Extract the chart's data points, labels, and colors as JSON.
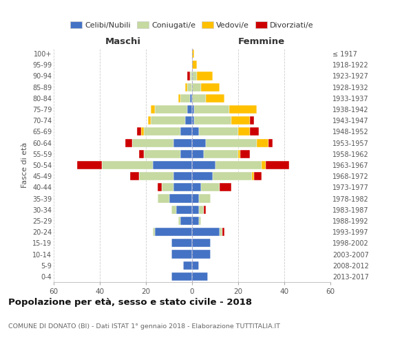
{
  "age_groups": [
    "0-4",
    "5-9",
    "10-14",
    "15-19",
    "20-24",
    "25-29",
    "30-34",
    "35-39",
    "40-44",
    "45-49",
    "50-54",
    "55-59",
    "60-64",
    "65-69",
    "70-74",
    "75-79",
    "80-84",
    "85-89",
    "90-94",
    "95-99",
    "100+"
  ],
  "birth_years": [
    "2013-2017",
    "2008-2012",
    "2003-2007",
    "1998-2002",
    "1993-1997",
    "1988-1992",
    "1983-1987",
    "1978-1982",
    "1973-1977",
    "1968-1972",
    "1963-1967",
    "1958-1962",
    "1953-1957",
    "1948-1952",
    "1943-1947",
    "1938-1942",
    "1933-1937",
    "1928-1932",
    "1923-1927",
    "1918-1922",
    "≤ 1917"
  ],
  "colors": {
    "celibi": "#4472C4",
    "coniugati": "#c5d9a0",
    "vedovi": "#ffc000",
    "divorziati": "#cc0000"
  },
  "maschi": {
    "celibi": [
      9,
      4,
      9,
      9,
      16,
      5,
      7,
      10,
      8,
      8,
      17,
      5,
      8,
      5,
      3,
      2,
      1,
      0,
      0,
      0,
      0
    ],
    "coniugati": [
      0,
      0,
      0,
      0,
      1,
      1,
      2,
      5,
      5,
      15,
      22,
      16,
      18,
      16,
      15,
      14,
      4,
      2,
      1,
      0,
      0
    ],
    "vedovi": [
      0,
      0,
      0,
      0,
      0,
      0,
      0,
      0,
      0,
      0,
      0,
      0,
      0,
      1,
      1,
      2,
      1,
      1,
      0,
      0,
      0
    ],
    "divorziati": [
      0,
      0,
      0,
      0,
      0,
      0,
      0,
      0,
      2,
      4,
      11,
      2,
      3,
      2,
      0,
      0,
      0,
      0,
      1,
      0,
      0
    ]
  },
  "femmine": {
    "celibi": [
      7,
      3,
      8,
      8,
      12,
      3,
      3,
      3,
      4,
      9,
      10,
      5,
      6,
      3,
      1,
      1,
      0,
      0,
      0,
      0,
      0
    ],
    "coniugati": [
      0,
      0,
      0,
      0,
      1,
      1,
      2,
      5,
      8,
      17,
      20,
      15,
      22,
      17,
      16,
      15,
      6,
      4,
      2,
      0,
      0
    ],
    "vedovi": [
      0,
      0,
      0,
      0,
      0,
      0,
      0,
      0,
      0,
      1,
      2,
      1,
      5,
      5,
      8,
      12,
      8,
      8,
      7,
      2,
      1
    ],
    "divorziati": [
      0,
      0,
      0,
      0,
      1,
      0,
      1,
      0,
      5,
      3,
      10,
      4,
      2,
      4,
      2,
      0,
      0,
      0,
      0,
      0,
      0
    ]
  },
  "title": "Popolazione per età, sesso e stato civile - 2018",
  "subtitle": "COMUNE DI DONATO (BI) - Dati ISTAT 1° gennaio 2018 - Elaborazione TUTTITALIA.IT",
  "xlabel_left": "Maschi",
  "xlabel_right": "Femmine",
  "ylabel_left": "Fasce di età",
  "xlim": 60,
  "bg_color": "#ffffff",
  "grid_color": "#cccccc",
  "legend_labels": [
    "Celibi/Nubili",
    "Coniugati/e",
    "Vedovi/e",
    "Divorziati/e"
  ]
}
